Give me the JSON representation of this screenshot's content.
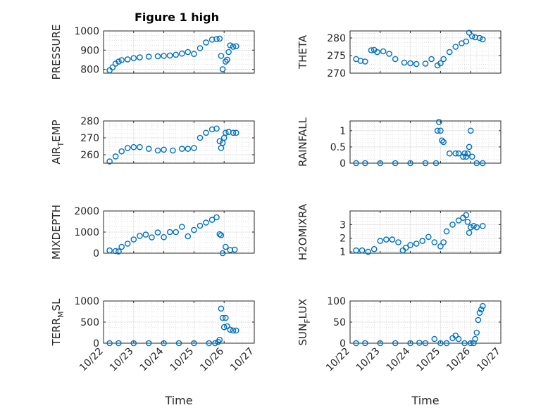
{
  "figure": {
    "title": "Figure 1 high",
    "marker_color": "#0072BD"
  },
  "chart_data": [
    {
      "type": "scatter",
      "ylabel": "PRESSURE",
      "xlabel": "",
      "xlim": [
        0,
        5
      ],
      "ylim": [
        780,
        1000
      ],
      "yticks": [
        800,
        900,
        1000
      ],
      "xticks": [
        0,
        1,
        2,
        3,
        4,
        5
      ],
      "xtick_labels": [],
      "x": [
        0.2,
        0.3,
        0.4,
        0.5,
        0.6,
        0.8,
        1.0,
        1.2,
        1.5,
        1.8,
        2.0,
        2.2,
        2.4,
        2.6,
        2.8,
        3.0,
        3.2,
        3.4,
        3.6,
        3.75,
        3.85,
        3.9,
        3.95,
        4.05,
        4.1,
        4.15,
        4.2,
        4.3,
        4.4
      ],
      "y": [
        795,
        810,
        830,
        840,
        848,
        852,
        858,
        862,
        866,
        868,
        870,
        872,
        876,
        882,
        890,
        880,
        910,
        940,
        955,
        958,
        960,
        870,
        800,
        840,
        850,
        890,
        925,
        918,
        920
      ]
    },
    {
      "type": "scatter",
      "ylabel": "THETA",
      "xlabel": "",
      "xlim": [
        0,
        5
      ],
      "ylim": [
        270,
        282
      ],
      "yticks": [
        270,
        275,
        280
      ],
      "xticks": [
        0,
        1,
        2,
        3,
        4,
        5
      ],
      "xtick_labels": [],
      "x": [
        0.2,
        0.35,
        0.5,
        0.7,
        0.8,
        0.9,
        1.1,
        1.3,
        1.5,
        1.8,
        2.0,
        2.2,
        2.5,
        2.7,
        2.9,
        3.0,
        3.1,
        3.3,
        3.5,
        3.7,
        3.85,
        3.95,
        4.05,
        4.15,
        4.3,
        4.4
      ],
      "y": [
        274,
        273.5,
        273.3,
        276.5,
        276.6,
        276,
        276.2,
        275.5,
        274,
        273,
        272.8,
        272.6,
        272.7,
        274,
        272.2,
        272.8,
        274,
        276,
        277.5,
        278.5,
        279,
        281.5,
        280.5,
        280.2,
        280,
        279.6
      ]
    },
    {
      "type": "scatter",
      "ylabel": "AIR_TEMP",
      "xlabel": "",
      "xlim": [
        0,
        5
      ],
      "ylim": [
        255,
        280
      ],
      "yticks": [
        260,
        270,
        280
      ],
      "xticks": [
        0,
        1,
        2,
        3,
        4,
        5
      ],
      "xtick_labels": [],
      "x": [
        0.2,
        0.4,
        0.6,
        0.8,
        1.0,
        1.2,
        1.5,
        1.8,
        2.0,
        2.3,
        2.6,
        2.8,
        3.0,
        3.2,
        3.4,
        3.6,
        3.75,
        3.85,
        3.9,
        3.95,
        4.0,
        4.05,
        4.15,
        4.3,
        4.4
      ],
      "y": [
        256,
        259,
        262,
        264,
        264.5,
        264.5,
        263.5,
        262.5,
        263,
        262.5,
        263.5,
        263.5,
        264,
        270,
        273,
        275,
        275.5,
        268,
        264,
        267,
        270,
        273,
        273.5,
        273,
        273
      ]
    },
    {
      "type": "scatter",
      "ylabel": "RAINFALL",
      "xlabel": "",
      "xlim": [
        0,
        5
      ],
      "ylim": [
        0,
        1.3
      ],
      "yticks": [
        0,
        0.5,
        1
      ],
      "xticks": [
        0,
        1,
        2,
        3,
        4,
        5
      ],
      "xtick_labels": [],
      "x": [
        0.2,
        0.5,
        1.0,
        1.5,
        2.0,
        2.5,
        2.85,
        2.9,
        2.95,
        3.0,
        3.05,
        3.1,
        3.3,
        3.5,
        3.6,
        3.75,
        3.8,
        3.85,
        3.9,
        3.95,
        4.0,
        4.05,
        4.2,
        4.4
      ],
      "y": [
        0,
        0,
        0,
        0,
        0,
        0,
        0,
        1.0,
        1.27,
        1.0,
        0.7,
        0.65,
        0.3,
        0.3,
        0.3,
        0.2,
        0.3,
        0.2,
        0.3,
        0.5,
        1.0,
        0.2,
        0,
        0
      ]
    },
    {
      "type": "scatter",
      "ylabel": "MIXDEPTH",
      "xlabel": "",
      "xlim": [
        0,
        5
      ],
      "ylim": [
        0,
        2000
      ],
      "yticks": [
        0,
        1000,
        2000
      ],
      "xticks": [
        0,
        1,
        2,
        3,
        4,
        5
      ],
      "xtick_labels": [],
      "x": [
        0.2,
        0.4,
        0.5,
        0.6,
        0.8,
        1.0,
        1.2,
        1.4,
        1.6,
        1.8,
        2.0,
        2.2,
        2.4,
        2.6,
        2.8,
        3.0,
        3.2,
        3.4,
        3.6,
        3.75,
        3.85,
        3.9,
        3.95,
        4.05,
        4.2,
        4.35
      ],
      "y": [
        130,
        100,
        80,
        300,
        450,
        650,
        820,
        880,
        750,
        980,
        760,
        1000,
        1000,
        1250,
        800,
        1100,
        1300,
        1450,
        1580,
        1700,
        900,
        850,
        0,
        300,
        150,
        170
      ]
    },
    {
      "type": "scatter",
      "ylabel": "H2OMIXRA",
      "xlabel": "",
      "xlim": [
        0,
        5
      ],
      "ylim": [
        0.9,
        4
      ],
      "yticks": [
        1,
        2,
        3
      ],
      "xticks": [
        0,
        1,
        2,
        3,
        4,
        5
      ],
      "xtick_labels": [],
      "x": [
        0.2,
        0.4,
        0.6,
        0.8,
        1.0,
        1.2,
        1.4,
        1.6,
        1.75,
        1.85,
        2.0,
        2.2,
        2.4,
        2.6,
        2.8,
        3.0,
        3.1,
        3.2,
        3.4,
        3.6,
        3.75,
        3.85,
        3.9,
        3.95,
        4.0,
        4.1,
        4.2,
        4.4
      ],
      "y": [
        1.1,
        1.1,
        1.0,
        1.2,
        1.8,
        1.9,
        1.9,
        1.7,
        1.1,
        1.3,
        1.5,
        1.6,
        1.8,
        2.1,
        1.7,
        1.4,
        1.7,
        2.5,
        3.0,
        3.3,
        3.5,
        3.7,
        3.2,
        2.4,
        2.8,
        2.9,
        2.8,
        2.9
      ]
    },
    {
      "type": "scatter",
      "ylabel": "TERR_MSL",
      "xlabel": "Time",
      "xlim": [
        0,
        5
      ],
      "ylim": [
        0,
        1000
      ],
      "yticks": [
        0,
        500,
        1000
      ],
      "xticks": [
        0,
        1,
        2,
        3,
        4,
        5
      ],
      "xtick_labels": [
        "10/22",
        "10/23",
        "10/24",
        "10/25",
        "10/26",
        "10/27"
      ],
      "x": [
        0.2,
        0.5,
        1.0,
        1.5,
        2.0,
        2.5,
        3.0,
        3.5,
        3.7,
        3.8,
        3.85,
        3.9,
        3.95,
        4.0,
        4.05,
        4.1,
        4.2,
        4.3,
        4.4
      ],
      "y": [
        0,
        0,
        0,
        0,
        0,
        0,
        0,
        0,
        0,
        30,
        80,
        820,
        600,
        380,
        600,
        400,
        320,
        300,
        300
      ]
    },
    {
      "type": "scatter",
      "ylabel": "SUN_FLUX",
      "xlabel": "Time",
      "xlim": [
        0,
        5
      ],
      "ylim": [
        0,
        100
      ],
      "yticks": [
        0,
        50,
        100
      ],
      "xticks": [
        0,
        1,
        2,
        3,
        4,
        5
      ],
      "xtick_labels": [
        "10/22",
        "10/23",
        "10/24",
        "10/25",
        "10/26",
        "10/27"
      ],
      "x": [
        0.2,
        0.5,
        1.0,
        1.5,
        2.0,
        2.3,
        2.5,
        2.8,
        3.0,
        3.2,
        3.4,
        3.5,
        3.6,
        3.8,
        4.0,
        4.1,
        4.15,
        4.2,
        4.25,
        4.3,
        4.35,
        4.4
      ],
      "y": [
        0,
        0,
        0,
        0,
        0,
        1,
        0,
        10,
        0,
        0,
        12,
        18,
        10,
        0,
        0,
        0,
        10,
        25,
        55,
        72,
        80,
        88
      ]
    }
  ]
}
